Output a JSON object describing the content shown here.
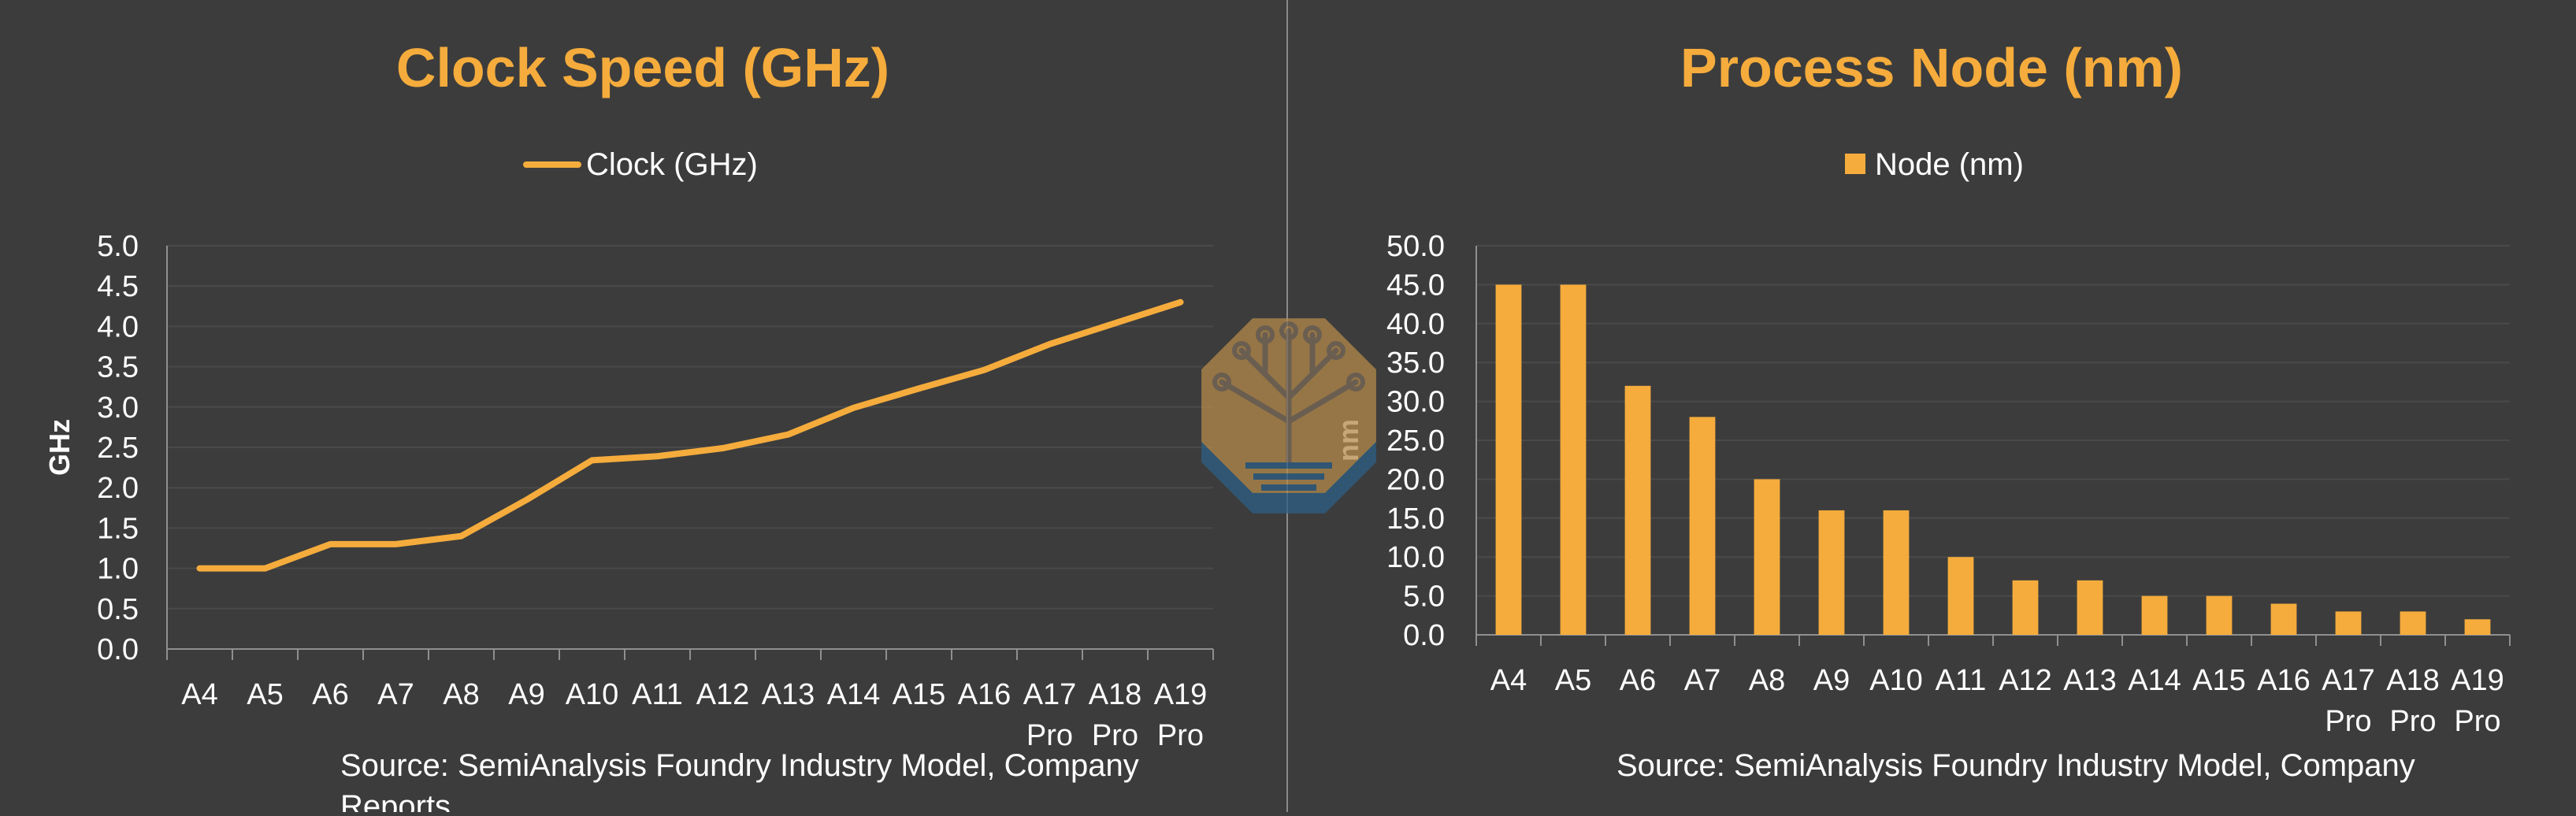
{
  "colors": {
    "background": "#3c3c3c",
    "accent": "#f5ac3c",
    "divider": "#8a8a8a",
    "gridline": "#4a4a4a",
    "axis": "#8f8f8f",
    "text": "#ffffff",
    "logo_fill": "#b58a4a",
    "logo_shadow": "#2c5f86"
  },
  "logo": {
    "icon": "circuit-tree-logo-icon"
  },
  "chart_data": [
    {
      "type": "line",
      "title": "Clock Speed (GHz)",
      "ylabel": "GHz",
      "xlabel": "",
      "categories": [
        "A4",
        "A5",
        "A6",
        "A7",
        "A8",
        "A9",
        "A10",
        "A11",
        "A12",
        "A13",
        "A14",
        "A15",
        "A16",
        "A17 Pro",
        "A18 Pro",
        "A19 Pro"
      ],
      "category_lines": [
        [
          "A4"
        ],
        [
          "A5"
        ],
        [
          "A6"
        ],
        [
          "A7"
        ],
        [
          "A8"
        ],
        [
          "A9"
        ],
        [
          "A10"
        ],
        [
          "A11"
        ],
        [
          "A12"
        ],
        [
          "A13"
        ],
        [
          "A14"
        ],
        [
          "A15"
        ],
        [
          "A16"
        ],
        [
          "A17",
          "Pro"
        ],
        [
          "A18",
          "Pro"
        ],
        [
          "A19",
          "Pro"
        ]
      ],
      "series": [
        {
          "name": "Clock (GHz)",
          "values": [
            1.0,
            1.0,
            1.3,
            1.3,
            1.4,
            1.85,
            2.34,
            2.39,
            2.49,
            2.66,
            2.99,
            3.23,
            3.46,
            3.78,
            4.04,
            4.3
          ]
        }
      ],
      "ylim": [
        0,
        5
      ],
      "yticks": [
        "0.0",
        "0.5",
        "1.0",
        "1.5",
        "2.0",
        "2.5",
        "3.0",
        "3.5",
        "4.0",
        "4.5",
        "5.0"
      ],
      "legend": "top-center",
      "grid": true,
      "source_lines": [
        "Source: SemiAnalysis Foundry Industry Model, Company",
        "Reports"
      ]
    },
    {
      "type": "bar",
      "title": "Process Node (nm)",
      "ylabel": "nm",
      "xlabel": "",
      "categories": [
        "A4",
        "A5",
        "A6",
        "A7",
        "A8",
        "A9",
        "A10",
        "A11",
        "A12",
        "A13",
        "A14",
        "A15",
        "A16",
        "A17 Pro",
        "A18 Pro",
        "A19 Pro"
      ],
      "category_lines": [
        [
          "A4"
        ],
        [
          "A5"
        ],
        [
          "A6"
        ],
        [
          "A7"
        ],
        [
          "A8"
        ],
        [
          "A9"
        ],
        [
          "A10"
        ],
        [
          "A11"
        ],
        [
          "A12"
        ],
        [
          "A13"
        ],
        [
          "A14"
        ],
        [
          "A15"
        ],
        [
          "A16"
        ],
        [
          "A17",
          "Pro"
        ],
        [
          "A18",
          "Pro"
        ],
        [
          "A19",
          "Pro"
        ]
      ],
      "series": [
        {
          "name": "Node (nm)",
          "values": [
            45,
            45,
            32,
            28,
            20,
            16,
            16,
            10,
            7,
            7,
            5,
            5,
            4,
            3,
            3,
            2
          ]
        }
      ],
      "ylim": [
        0,
        50
      ],
      "yticks": [
        "0.0",
        "5.0",
        "10.0",
        "15.0",
        "20.0",
        "25.0",
        "30.0",
        "35.0",
        "40.0",
        "45.0",
        "50.0"
      ],
      "legend": "top-center",
      "grid": true,
      "source_lines": [
        "Source: SemiAnalysis Foundry Industry Model, Company"
      ]
    }
  ]
}
